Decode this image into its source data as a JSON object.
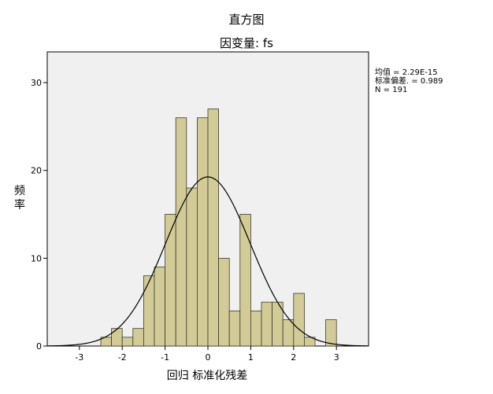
{
  "chart_data": {
    "type": "bar",
    "title": "直方图",
    "subtitle": "因变量: fs",
    "xlabel": "回归 标准化残差",
    "ylabel": "频率",
    "xlim": [
      -3.75,
      3.75
    ],
    "ylim": [
      0,
      33.5
    ],
    "xticks": [
      "-3",
      "-2",
      "-1",
      "0",
      "1",
      "2",
      "3"
    ],
    "yticks": [
      "0",
      "10",
      "20",
      "30"
    ],
    "bins": {
      "start": -2.5,
      "width": 0.25,
      "counts": [
        1,
        2,
        1,
        2,
        8,
        9,
        15,
        26,
        18,
        26,
        27,
        10,
        4,
        15,
        4,
        5,
        5,
        3,
        6,
        1,
        0,
        3
      ]
    },
    "normal_curve": {
      "mean": 2.29e-15,
      "sd": 0.989,
      "n": 191
    },
    "legend_placement": "top-right, outside plot",
    "grid": false,
    "colors": {
      "bar_fill": "#D2CB97",
      "bar_edge": "#3B3B25",
      "plot_bg": "#F0F0F0",
      "curve": "#000000"
    }
  },
  "stats": {
    "mean": "均值 = 2.29E-15",
    "sd": "标准偏差. = 0.989",
    "n": "N = 191"
  }
}
